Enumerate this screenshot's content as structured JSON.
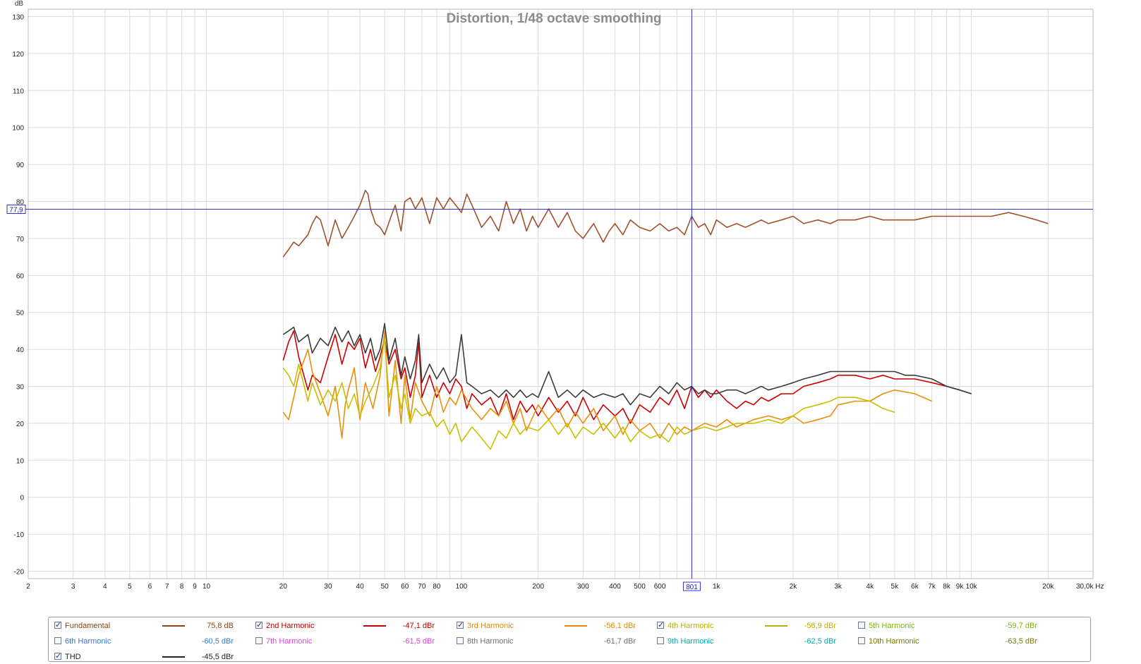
{
  "chart_data": {
    "type": "line",
    "title": "Distortion, 1/48 octave smoothing",
    "ylabel": "dB",
    "xunit": "Hz",
    "xscale": "log",
    "xlim": [
      2,
      30000
    ],
    "ylim": [
      -22,
      132
    ],
    "grid": true,
    "yticks": [
      130,
      120,
      110,
      100,
      90,
      80,
      70,
      60,
      50,
      40,
      30,
      20,
      10,
      0,
      -10,
      -20
    ],
    "xticks": [
      {
        "v": 2,
        "label": "2"
      },
      {
        "v": 3,
        "label": "3"
      },
      {
        "v": 4,
        "label": "4"
      },
      {
        "v": 5,
        "label": "5"
      },
      {
        "v": 6,
        "label": "6"
      },
      {
        "v": 7,
        "label": "7"
      },
      {
        "v": 8,
        "label": "8"
      },
      {
        "v": 9,
        "label": "9"
      },
      {
        "v": 10,
        "label": "10"
      },
      {
        "v": 20,
        "label": "20"
      },
      {
        "v": 30,
        "label": "30"
      },
      {
        "v": 40,
        "label": "40"
      },
      {
        "v": 50,
        "label": "50"
      },
      {
        "v": 60,
        "label": "60"
      },
      {
        "v": 70,
        "label": "70"
      },
      {
        "v": 80,
        "label": "80"
      },
      {
        "v": 100,
        "label": "100"
      },
      {
        "v": 200,
        "label": "200"
      },
      {
        "v": 300,
        "label": "300"
      },
      {
        "v": 400,
        "label": "400"
      },
      {
        "v": 500,
        "label": "500"
      },
      {
        "v": 600,
        "label": "600"
      },
      {
        "v": 1000,
        "label": "1k"
      },
      {
        "v": 2000,
        "label": "2k"
      },
      {
        "v": 3000,
        "label": "3k"
      },
      {
        "v": 4000,
        "label": "4k"
      },
      {
        "v": 5000,
        "label": "5k"
      },
      {
        "v": 6000,
        "label": "6k"
      },
      {
        "v": 7000,
        "label": "7k"
      },
      {
        "v": 8000,
        "label": "8k"
      },
      {
        "v": 9000,
        "label": "9k"
      },
      {
        "v": 10000,
        "label": "10k"
      },
      {
        "v": 20000,
        "label": "20k"
      },
      {
        "v": 30000,
        "label": "30,0k Hz"
      }
    ],
    "cursor": {
      "x": 801,
      "y": 77.9,
      "x_label": "801",
      "y_label": "77,9"
    },
    "series": [
      {
        "name": "Fundamental",
        "color": "#a0522d",
        "x": [
          20,
          21,
          22,
          23,
          25,
          26,
          27,
          28,
          30,
          32,
          34,
          36,
          38,
          40,
          42,
          43,
          44,
          46,
          48,
          50,
          53,
          55,
          58,
          60,
          63,
          66,
          70,
          75,
          80,
          85,
          90,
          95,
          100,
          105,
          110,
          120,
          130,
          140,
          150,
          160,
          170,
          180,
          190,
          200,
          220,
          240,
          260,
          280,
          300,
          330,
          360,
          380,
          400,
          430,
          460,
          500,
          550,
          600,
          650,
          700,
          750,
          800,
          850,
          900,
          950,
          1000,
          1100,
          1200,
          1300,
          1400,
          1500,
          1600,
          1800,
          2000,
          2200,
          2500,
          2800,
          3000,
          3500,
          4000,
          4500,
          5000,
          5500,
          6000,
          7000,
          8000,
          9000,
          10000,
          12000,
          14000,
          16000,
          18000,
          20000
        ],
        "y": [
          65,
          67,
          69,
          68,
          71,
          74,
          76,
          75,
          68,
          75,
          70,
          73,
          76,
          79,
          83,
          82,
          78,
          74,
          73,
          71,
          76,
          79,
          72,
          80,
          81,
          78,
          81,
          74,
          81,
          78,
          81,
          79,
          77,
          82,
          79,
          73,
          76,
          72,
          80,
          74,
          78,
          72,
          76,
          73,
          78,
          73,
          77,
          72,
          70,
          74,
          69,
          72,
          74,
          71,
          75,
          73,
          72,
          74,
          72,
          73,
          71,
          76,
          73,
          74,
          71,
          75,
          73,
          74,
          73,
          74,
          75,
          74,
          75,
          76,
          74,
          75,
          74,
          75,
          75,
          76,
          75,
          75,
          75,
          75,
          76,
          76,
          76,
          76,
          76,
          77,
          76,
          75,
          74
        ]
      },
      {
        "name": "2nd Harmonic",
        "color": "#cc0000",
        "x": [
          20,
          21,
          22,
          23,
          25,
          26,
          28,
          30,
          32,
          34,
          36,
          38,
          40,
          42,
          44,
          46,
          48,
          50,
          52,
          55,
          58,
          60,
          63,
          66,
          68,
          70,
          75,
          80,
          85,
          90,
          95,
          100,
          105,
          110,
          120,
          130,
          140,
          150,
          160,
          170,
          180,
          190,
          200,
          220,
          240,
          260,
          280,
          300,
          330,
          360,
          400,
          430,
          460,
          500,
          550,
          600,
          650,
          700,
          750,
          800,
          850,
          900,
          950,
          1000,
          1100,
          1200,
          1300,
          1400,
          1500,
          1600,
          1800,
          2000,
          2200,
          2500,
          2800,
          3000,
          3500,
          4000,
          4500,
          5000,
          5500,
          6000,
          7000,
          8000,
          9000,
          10000
        ],
        "y": [
          37,
          42,
          45,
          38,
          29,
          33,
          31,
          38,
          44,
          36,
          42,
          40,
          43,
          35,
          40,
          34,
          38,
          43,
          36,
          40,
          32,
          35,
          27,
          33,
          42,
          27,
          33,
          27,
          31,
          28,
          32,
          30,
          24,
          28,
          25,
          27,
          22,
          28,
          21,
          26,
          23,
          25,
          22,
          27,
          23,
          26,
          22,
          27,
          21,
          25,
          22,
          24,
          20,
          25,
          23,
          27,
          25,
          29,
          24,
          30,
          27,
          29,
          27,
          29,
          26,
          24,
          26,
          25,
          27,
          26,
          28,
          28,
          30,
          31,
          32,
          33,
          33,
          32,
          33,
          32,
          32,
          32,
          31,
          30,
          29,
          28
        ]
      },
      {
        "name": "3rd Harmonic",
        "color": "#e8900a",
        "x": [
          20,
          21,
          22,
          23,
          25,
          26,
          28,
          30,
          32,
          34,
          35,
          36,
          38,
          40,
          42,
          45,
          48,
          50,
          52,
          55,
          58,
          60,
          63,
          66,
          70,
          75,
          80,
          85,
          90,
          95,
          100,
          110,
          120,
          130,
          140,
          150,
          160,
          170,
          180,
          200,
          220,
          240,
          260,
          280,
          300,
          330,
          360,
          400,
          430,
          460,
          500,
          550,
          600,
          650,
          700,
          750,
          800,
          900,
          1000,
          1100,
          1200,
          1400,
          1600,
          1800,
          2000,
          2200,
          2500,
          2800,
          3000,
          3500,
          4000,
          4500,
          5000,
          6000,
          7000
        ],
        "y": [
          23,
          21,
          27,
          33,
          40,
          34,
          28,
          22,
          30,
          16,
          25,
          29,
          35,
          21,
          31,
          24,
          33,
          45,
          22,
          37,
          20,
          33,
          21,
          31,
          26,
          22,
          30,
          23,
          27,
          25,
          29,
          24,
          21,
          24,
          22,
          26,
          20,
          24,
          18,
          25,
          21,
          24,
          19,
          23,
          20,
          24,
          18,
          22,
          17,
          21,
          18,
          20,
          16,
          20,
          17,
          19,
          18,
          20,
          19,
          21,
          19,
          21,
          22,
          21,
          22,
          20,
          21,
          22,
          25,
          26,
          26,
          28,
          29,
          28,
          26
        ]
      },
      {
        "name": "4th Harmonic",
        "color": "#c8c000",
        "x": [
          20,
          21,
          22,
          23,
          25,
          26,
          28,
          30,
          32,
          34,
          36,
          38,
          40,
          42,
          45,
          48,
          50,
          52,
          55,
          58,
          60,
          63,
          66,
          70,
          75,
          80,
          85,
          90,
          95,
          100,
          110,
          120,
          130,
          140,
          150,
          160,
          170,
          180,
          200,
          220,
          240,
          260,
          280,
          300,
          330,
          360,
          400,
          430,
          460,
          500,
          550,
          600,
          650,
          700,
          750,
          800,
          900,
          1000,
          1100,
          1200,
          1400,
          1600,
          1800,
          2000,
          2200,
          2500,
          2800,
          3000,
          3500,
          4000,
          4500,
          5000
        ],
        "y": [
          35,
          33,
          30,
          36,
          26,
          31,
          25,
          29,
          26,
          31,
          24,
          28,
          22,
          26,
          30,
          35,
          43,
          27,
          33,
          24,
          28,
          20,
          24,
          22,
          23,
          19,
          21,
          17,
          20,
          15,
          19,
          16,
          13,
          18,
          16,
          20,
          17,
          19,
          18,
          21,
          17,
          20,
          16,
          19,
          17,
          20,
          16,
          19,
          15,
          18,
          16,
          17,
          15,
          19,
          17,
          18,
          19,
          18,
          19,
          20,
          20,
          21,
          20,
          22,
          24,
          25,
          26,
          27,
          27,
          26,
          24,
          23
        ]
      },
      {
        "name": "THD",
        "color": "#3c3c3c",
        "x": [
          20,
          21,
          22,
          23,
          25,
          26,
          28,
          30,
          32,
          34,
          36,
          38,
          40,
          42,
          44,
          46,
          48,
          50,
          52,
          55,
          58,
          60,
          63,
          66,
          68,
          70,
          75,
          80,
          85,
          90,
          95,
          100,
          105,
          110,
          120,
          130,
          140,
          150,
          160,
          170,
          180,
          190,
          200,
          220,
          240,
          260,
          280,
          300,
          330,
          360,
          400,
          430,
          460,
          500,
          550,
          600,
          650,
          700,
          750,
          800,
          850,
          900,
          950,
          1000,
          1100,
          1200,
          1300,
          1400,
          1500,
          1600,
          1800,
          2000,
          2200,
          2500,
          2800,
          3000,
          3500,
          4000,
          4500,
          5000,
          5500,
          6000,
          7000,
          8000,
          9000,
          10000
        ],
        "y": [
          44,
          45,
          46,
          42,
          44,
          39,
          43,
          41,
          46,
          42,
          45,
          41,
          44,
          39,
          43,
          37,
          40,
          47,
          37,
          43,
          33,
          38,
          32,
          37,
          44,
          31,
          36,
          32,
          35,
          31,
          33,
          44,
          31,
          30,
          28,
          29,
          27,
          29,
          27,
          29,
          27,
          28,
          27,
          34,
          27,
          29,
          27,
          29,
          27,
          28,
          27,
          28,
          25,
          28,
          27,
          30,
          28,
          31,
          29,
          30,
          28,
          29,
          28,
          28,
          29,
          29,
          28,
          29,
          30,
          29,
          30,
          31,
          32,
          33,
          34,
          34,
          34,
          34,
          34,
          34,
          33,
          33,
          32,
          30,
          29,
          28
        ]
      }
    ]
  },
  "legend": {
    "items": [
      {
        "label": "Fundamental",
        "value": "75,8 dB",
        "color": "#8b4513",
        "checked": true,
        "show_line": true
      },
      {
        "label": "2nd Harmonic",
        "value": "-47,1 dBr",
        "color": "#c00000",
        "checked": true,
        "show_line": true
      },
      {
        "label": "3rd Harmonic",
        "value": "-56,1 dBr",
        "color": "#e08a00",
        "checked": true,
        "show_line": true
      },
      {
        "label": "4th Harmonic",
        "value": "-56,9 dBr",
        "color": "#b8b000",
        "checked": true,
        "show_line": true
      },
      {
        "label": "5th Harmonic",
        "value": "-59,7 dBr",
        "color": "#7cb800",
        "checked": false,
        "show_line": false
      },
      {
        "label": "6th Harmonic",
        "value": "-60,5 dBr",
        "color": "#3a78d0",
        "checked": false,
        "show_line": false
      },
      {
        "label": "7th Harmonic",
        "value": "-61,5 dBr",
        "color": "#e040e0",
        "checked": false,
        "show_line": false
      },
      {
        "label": "8th Harmonic",
        "value": "-61,7 dBr",
        "color": "#707070",
        "checked": false,
        "show_line": false
      },
      {
        "label": "9th Harmonic",
        "value": "-62,5 dBr",
        "color": "#00a8b0",
        "checked": false,
        "show_line": false
      },
      {
        "label": "10th Harmonic",
        "value": "-63,5 dBr",
        "color": "#7a7a00",
        "checked": false,
        "show_line": false
      },
      {
        "label": "THD",
        "value": "-45,5 dBr",
        "color": "#222222",
        "checked": true,
        "show_line": true
      }
    ]
  }
}
